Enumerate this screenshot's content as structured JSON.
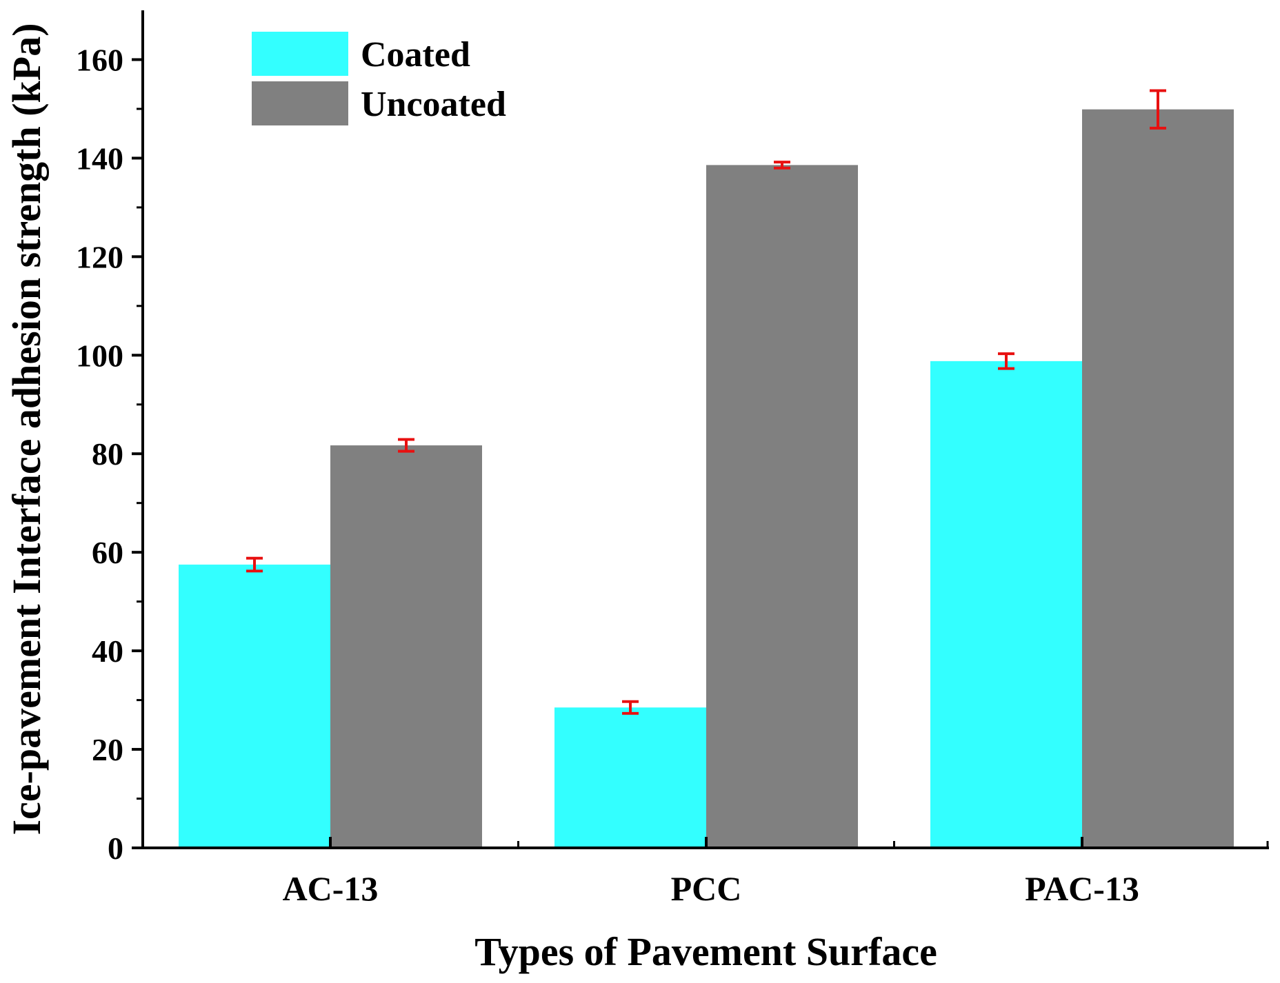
{
  "chart_data": {
    "type": "bar",
    "title": "",
    "xlabel": "Types of Pavement Surface",
    "ylabel": "Ice-pavement Interface adhesion strength (kPa)",
    "categories": [
      "AC-13",
      "PCC",
      "PAC-13"
    ],
    "ylim": [
      0,
      170
    ],
    "yticks": [
      0,
      20,
      40,
      60,
      80,
      100,
      120,
      140,
      160
    ],
    "grid": false,
    "legend_position": "top-left",
    "series": [
      {
        "name": "Coated",
        "color": "#33ffff",
        "values": [
          57.5,
          28.5,
          98.8
        ],
        "errors": [
          1.3,
          1.2,
          1.5
        ]
      },
      {
        "name": "Uncoated",
        "color": "#808080",
        "values": [
          81.7,
          138.6,
          149.9
        ],
        "errors": [
          1.2,
          0.6,
          3.8
        ]
      }
    ],
    "error_bar_color": "#e81010"
  }
}
